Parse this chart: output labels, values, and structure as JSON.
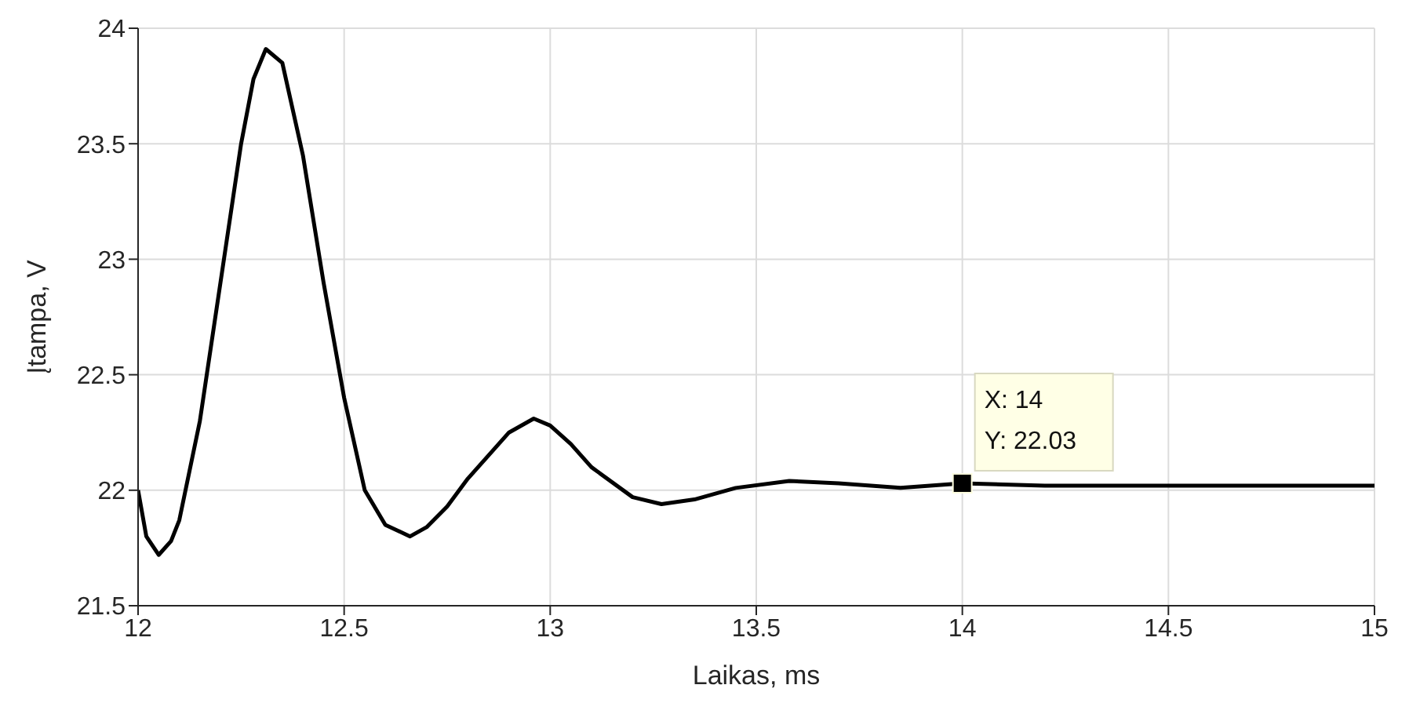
{
  "chart_data": {
    "type": "line",
    "xlabel": "Laikas, ms",
    "ylabel": "Įtampa, V",
    "x": [
      12,
      12.02,
      12.05,
      12.08,
      12.1,
      12.15,
      12.2,
      12.25,
      12.28,
      12.31,
      12.35,
      12.4,
      12.45,
      12.5,
      12.55,
      12.6,
      12.66,
      12.7,
      12.75,
      12.8,
      12.9,
      12.96,
      13.0,
      13.05,
      13.1,
      13.2,
      13.27,
      13.35,
      13.45,
      13.58,
      13.7,
      13.85,
      14,
      14.2,
      14.5,
      14.8,
      15
    ],
    "series": [
      {
        "color": "#000000",
        "values": [
          22.0,
          21.8,
          21.72,
          21.78,
          21.87,
          22.3,
          22.9,
          23.5,
          23.78,
          23.91,
          23.85,
          23.45,
          22.9,
          22.4,
          22.0,
          21.85,
          21.8,
          21.84,
          21.93,
          22.05,
          22.25,
          22.31,
          22.28,
          22.2,
          22.1,
          21.97,
          21.94,
          21.96,
          22.01,
          22.04,
          22.03,
          22.01,
          22.03,
          22.02,
          22.02,
          22.02,
          22.02
        ]
      }
    ],
    "xlim": [
      12,
      15
    ],
    "xticks": [
      12,
      12.5,
      13,
      13.5,
      14,
      14.5,
      15
    ],
    "ylim": [
      21.5,
      24
    ],
    "yticks": [
      21.5,
      22,
      22.5,
      23,
      23.5,
      24
    ],
    "grid": true,
    "marker": "none",
    "line_style": "solid",
    "annotations": [
      {
        "text": "X: 14",
        "x": 14,
        "y": 22.03
      },
      {
        "text": "Y: 22.03",
        "x": 14,
        "y": 22.03
      }
    ]
  }
}
